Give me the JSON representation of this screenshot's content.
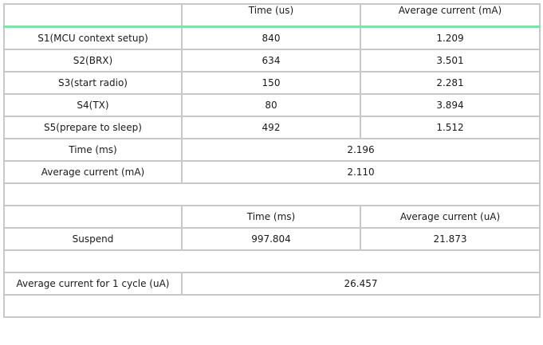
{
  "table": {
    "header": [
      "",
      "Time (us)",
      "Average current (mA)"
    ],
    "stages": [
      {
        "name": "S1(MCU context setup)",
        "time": "840",
        "current": "1.209"
      },
      {
        "name": "S2(BRX)",
        "time": "634",
        "current": "3.501"
      },
      {
        "name": "S3(start radio)",
        "time": "150",
        "current": "2.281"
      },
      {
        "name": "S4(TX)",
        "time": "80",
        "current": "3.894"
      },
      {
        "name": "S5(prepare to sleep)",
        "time": "492",
        "current": "1.512"
      }
    ],
    "active_summary": {
      "time_label": "Time (ms)",
      "time_value": "2.196",
      "current_label": "Average current (mA)",
      "current_value": "2.110"
    },
    "suspend_header": [
      "",
      "Time (ms)",
      "Average current (uA)"
    ],
    "suspend": {
      "name": "Suspend",
      "time": "997.804",
      "current": "21.873"
    },
    "cycle": {
      "label": "Average current for 1 cycle (uA)",
      "value": "26.457"
    }
  }
}
